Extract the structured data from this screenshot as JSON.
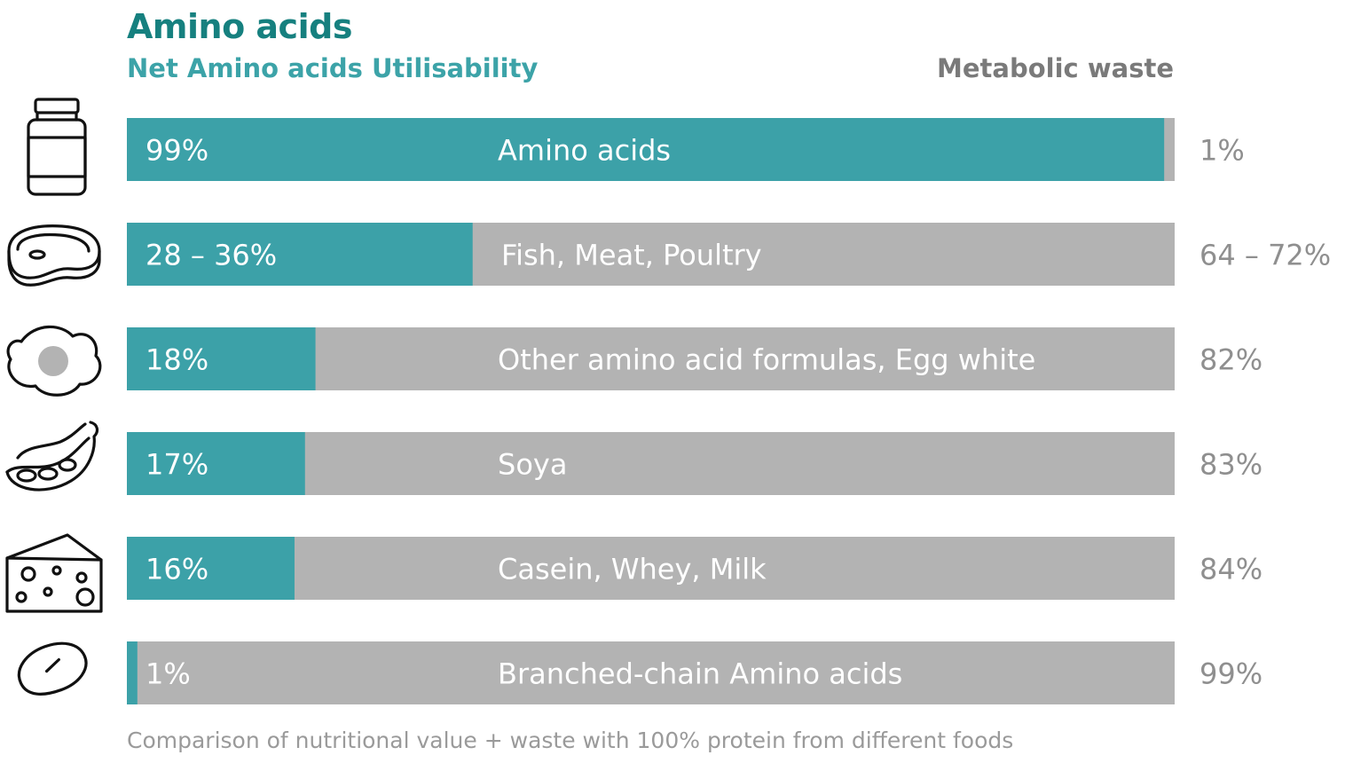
{
  "colors": {
    "util": "#3ca1a8",
    "waste": "#b3b3b3",
    "title": "#16807f"
  },
  "header": {
    "title": "Amino acids",
    "subtitle": "Net Amino acids Utilisability",
    "waste_label": "Metabolic waste"
  },
  "caption": "Comparison of nutritional value + waste with 100% protein from different foods",
  "chart_data": {
    "type": "bar",
    "orientation": "horizontal",
    "stacked": true,
    "xlim": [
      0,
      100
    ],
    "series": [
      {
        "name": "Net Amino acids Utilisability",
        "values": [
          99,
          33,
          18,
          17,
          16,
          1
        ]
      },
      {
        "name": "Metabolic waste",
        "values": [
          1,
          67,
          82,
          83,
          84,
          99
        ]
      }
    ],
    "rows": [
      {
        "category": "Amino acids",
        "util_label": "99%",
        "waste_label": "1%",
        "icon": "supplement-bottle-icon"
      },
      {
        "category": "Fish, Meat, Poultry",
        "util_label": "28 – 36%",
        "waste_label": "64 – 72%",
        "icon": "steak-icon"
      },
      {
        "category": "Other amino acid formulas, Egg white",
        "util_label": "18%",
        "waste_label": "82%",
        "icon": "fried-egg-icon"
      },
      {
        "category": "Soya",
        "util_label": "17%",
        "waste_label": "83%",
        "icon": "soybean-pod-icon"
      },
      {
        "category": "Casein, Whey, Milk",
        "util_label": "16%",
        "waste_label": "84%",
        "icon": "cheese-icon"
      },
      {
        "category": "Branched-chain Amino acids",
        "util_label": "1%",
        "waste_label": "99%",
        "icon": "bean-icon"
      }
    ]
  }
}
